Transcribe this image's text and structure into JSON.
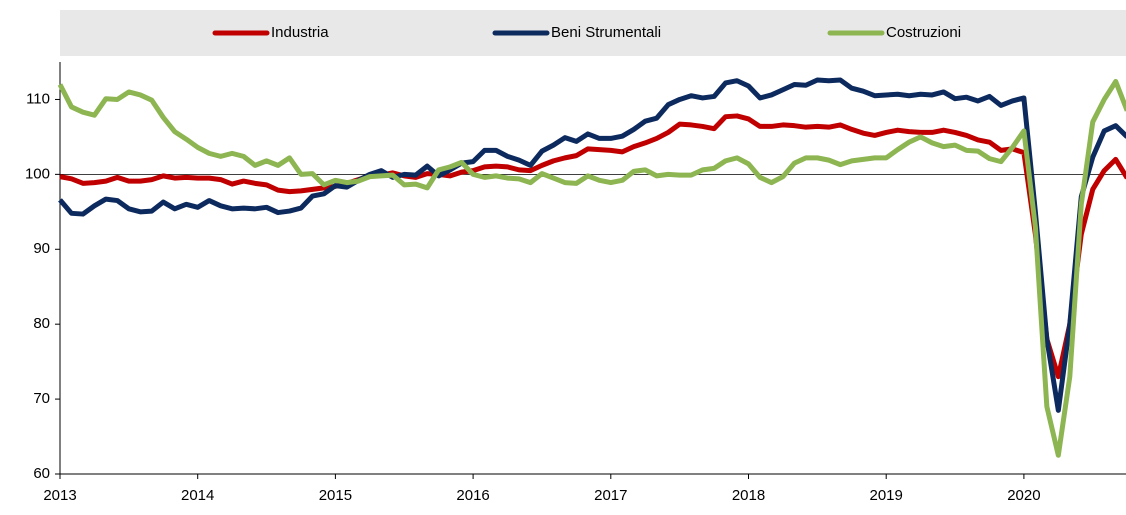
{
  "chart_data": {
    "type": "line",
    "categories": [
      "2013",
      null,
      null,
      null,
      null,
      null,
      null,
      null,
      null,
      null,
      null,
      null,
      "2014",
      null,
      null,
      null,
      null,
      null,
      null,
      null,
      null,
      null,
      null,
      null,
      "2015",
      null,
      null,
      null,
      null,
      null,
      null,
      null,
      null,
      null,
      null,
      null,
      "2016",
      null,
      null,
      null,
      null,
      null,
      null,
      null,
      null,
      null,
      null,
      null,
      "2017",
      null,
      null,
      null,
      null,
      null,
      null,
      null,
      null,
      null,
      null,
      null,
      "2018",
      null,
      null,
      null,
      null,
      null,
      null,
      null,
      null,
      null,
      null,
      null,
      "2019",
      null,
      null,
      null,
      null,
      null,
      null,
      null,
      null,
      null,
      null,
      null,
      "2020",
      null,
      null,
      null,
      null,
      null,
      null,
      null,
      null,
      null
    ],
    "series": [
      {
        "name": "Industria",
        "color": "#c00000",
        "values": [
          99.7,
          99.4,
          98.8,
          98.9,
          99.1,
          99.6,
          99.1,
          99.1,
          99.3,
          99.8,
          99.5,
          99.6,
          99.5,
          99.5,
          99.3,
          98.7,
          99.1,
          98.8,
          98.6,
          97.9,
          97.7,
          97.8,
          98.0,
          98.2,
          98.4,
          98.8,
          99.3,
          99.8,
          99.9,
          100.2,
          99.8,
          99.6,
          100.1,
          100.0,
          99.8,
          100.3,
          100.5,
          101.0,
          101.1,
          101.0,
          100.6,
          100.5,
          101.2,
          101.8,
          102.2,
          102.5,
          103.4,
          103.3,
          103.2,
          103.0,
          103.7,
          104.2,
          104.8,
          105.6,
          106.7,
          106.6,
          106.4,
          106.1,
          107.7,
          107.8,
          107.4,
          106.4,
          106.4,
          106.6,
          106.5,
          106.3,
          106.4,
          106.3,
          106.6,
          106.0,
          105.5,
          105.2,
          105.6,
          105.9,
          105.7,
          105.6,
          105.6,
          105.9,
          105.6,
          105.2,
          104.6,
          104.3,
          103.2,
          103.4,
          102.9,
          92,
          78,
          73,
          80,
          92,
          98,
          100.5,
          102,
          99.5
        ]
      },
      {
        "name": "Beni Strumentali",
        "color": "#0d2a5e",
        "values": [
          96.6,
          94.8,
          94.7,
          95.8,
          96.7,
          96.5,
          95.4,
          95.0,
          95.1,
          96.3,
          95.4,
          96.0,
          95.6,
          96.5,
          95.8,
          95.4,
          95.5,
          95.4,
          95.6,
          94.9,
          95.1,
          95.5,
          97.1,
          97.4,
          98.5,
          98.3,
          99.2,
          100.0,
          100.5,
          99.6,
          100.0,
          99.9,
          101.1,
          99.8,
          100.6,
          101.5,
          101.7,
          103.2,
          103.2,
          102.4,
          101.9,
          101.2,
          103.1,
          103.9,
          104.9,
          104.4,
          105.4,
          104.8,
          104.8,
          105.1,
          106.0,
          107.1,
          107.5,
          109.3,
          110.0,
          110.5,
          110.2,
          110.4,
          112.2,
          112.5,
          111.8,
          110.2,
          110.6,
          111.3,
          112.0,
          111.9,
          112.6,
          112.5,
          112.6,
          111.5,
          111.1,
          110.5,
          110.6,
          110.7,
          110.5,
          110.7,
          110.6,
          111.0,
          110.1,
          110.3,
          109.8,
          110.4,
          109.2,
          109.8,
          110.2,
          95,
          78,
          68.5,
          80,
          97,
          102.3,
          105.8,
          106.5,
          105
        ]
      },
      {
        "name": "Costruzioni",
        "color": "#8db551",
        "values": [
          112,
          109,
          108.3,
          107.9,
          110.1,
          110.0,
          111.0,
          110.6,
          109.9,
          107.6,
          105.7,
          104.7,
          103.6,
          102.8,
          102.4,
          102.8,
          102.4,
          101.2,
          101.8,
          101.2,
          102.2,
          100.0,
          100.1,
          98.6,
          99.2,
          98.9,
          99.1,
          99.7,
          99.8,
          99.9,
          98.6,
          98.7,
          98.2,
          100.6,
          101.0,
          101.6,
          100.0,
          99.6,
          99.8,
          99.5,
          99.4,
          98.9,
          100.1,
          99.5,
          98.9,
          98.8,
          99.8,
          99.2,
          98.9,
          99.2,
          100.4,
          100.6,
          99.8,
          100.0,
          99.9,
          99.9,
          100.6,
          100.8,
          101.8,
          102.2,
          101.4,
          99.6,
          98.9,
          99.7,
          101.5,
          102.2,
          102.2,
          101.9,
          101.3,
          101.8,
          102.0,
          102.2,
          102.2,
          103.3,
          104.3,
          105.0,
          104.2,
          103.7,
          103.9,
          103.2,
          103.1,
          102.1,
          101.7,
          103.6,
          105.8,
          93,
          69,
          62.5,
          73,
          96,
          107,
          110,
          112.4,
          108.5
        ]
      }
    ],
    "ylim": [
      60,
      115
    ],
    "yticks": [
      60,
      70,
      80,
      90,
      100,
      110
    ],
    "reference_line": 100,
    "legend": "top"
  }
}
